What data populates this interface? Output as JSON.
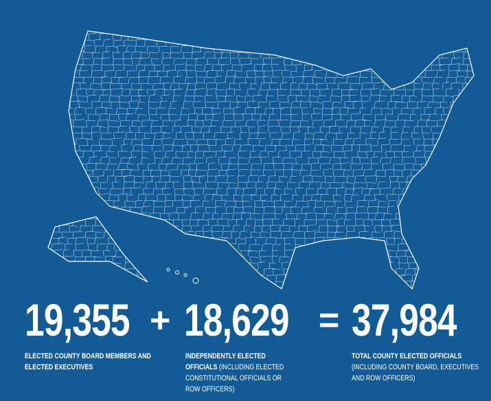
{
  "stats": [
    {
      "value": "19,355",
      "caption_bold": "ELECTED COUNTY BOARD MEMBERS AND ELECTED EXECUTIVES",
      "caption": ""
    },
    {
      "value": "18,629",
      "caption_bold": "INDEPENDENTLY ELECTED OFFICIALS",
      "caption": "(INCLUDING ELECTED CONSTITUTIONAL OFFICIALS OR ROW OFFICERS)"
    },
    {
      "value": "37,984",
      "caption_bold": "TOTAL COUNTY ELECTED OFFICIALS",
      "caption": "(INCLUDING COUNTY BOARD, EXECUTIVES AND ROW OFFICERS)"
    }
  ],
  "operators": [
    "+",
    "="
  ]
}
